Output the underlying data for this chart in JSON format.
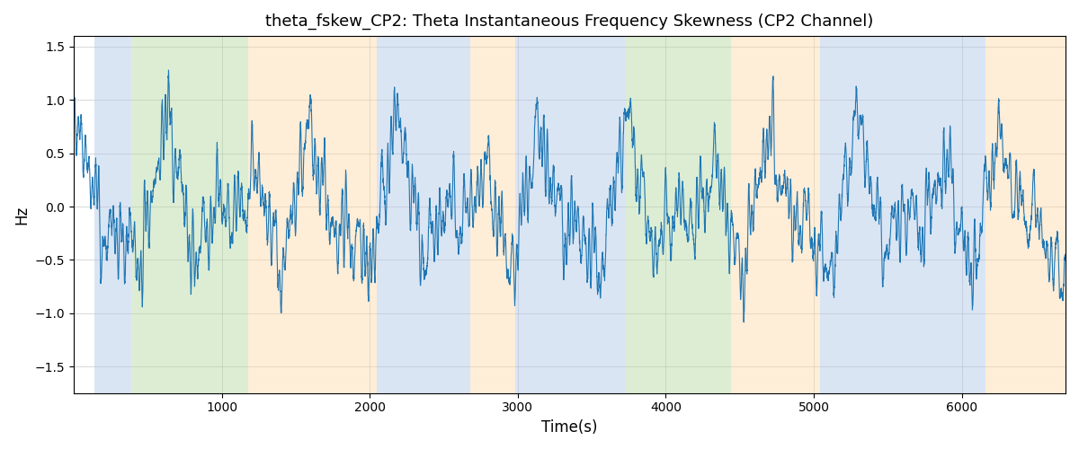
{
  "title": "theta_fskew_CP2: Theta Instantaneous Frequency Skewness (CP2 Channel)",
  "xlabel": "Time(s)",
  "ylabel": "Hz",
  "ylim": [
    -1.75,
    1.6
  ],
  "xlim": [
    0,
    6700
  ],
  "line_color": "#1f77b4",
  "line_width": 0.8,
  "grid_color": "#b0b0b0",
  "grid_alpha": 0.7,
  "yticks": [
    -1.5,
    -1.0,
    -0.5,
    0.0,
    0.5,
    1.0,
    1.5
  ],
  "xticks": [
    1000,
    2000,
    3000,
    4000,
    5000,
    6000
  ],
  "bands": [
    {
      "xmin": 140,
      "xmax": 390,
      "color": "#aec6e8",
      "alpha": 0.45
    },
    {
      "xmin": 390,
      "xmax": 1180,
      "color": "#b2d9a0",
      "alpha": 0.45
    },
    {
      "xmin": 1180,
      "xmax": 2050,
      "color": "#fdd9a8",
      "alpha": 0.45
    },
    {
      "xmin": 2050,
      "xmax": 2680,
      "color": "#aec6e8",
      "alpha": 0.45
    },
    {
      "xmin": 2680,
      "xmax": 2980,
      "color": "#fdd9a8",
      "alpha": 0.45
    },
    {
      "xmin": 2980,
      "xmax": 3730,
      "color": "#aec6e8",
      "alpha": 0.45
    },
    {
      "xmin": 3730,
      "xmax": 4440,
      "color": "#b2d9a0",
      "alpha": 0.45
    },
    {
      "xmin": 4440,
      "xmax": 5040,
      "color": "#fdd9a8",
      "alpha": 0.45
    },
    {
      "xmin": 5040,
      "xmax": 6160,
      "color": "#aec6e8",
      "alpha": 0.45
    },
    {
      "xmin": 6160,
      "xmax": 6700,
      "color": "#fdd9a8",
      "alpha": 0.45
    }
  ]
}
